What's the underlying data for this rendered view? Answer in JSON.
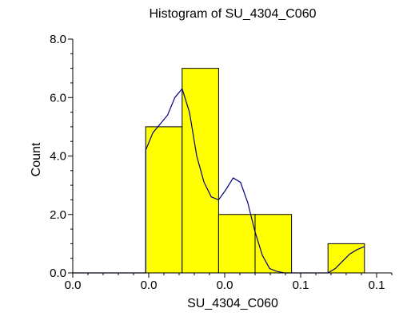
{
  "chart_data": {
    "type": "bar",
    "title": "Histogram of SU_4304_C060",
    "xlabel": "SU_4304_C060",
    "ylabel": "Count",
    "xlim": [
      0.0,
      0.1
    ],
    "ylim": [
      0,
      8
    ],
    "bins": [
      {
        "x0": 0.02,
        "x1": 0.03,
        "count": 5
      },
      {
        "x0": 0.03,
        "x1": 0.04,
        "count": 7
      },
      {
        "x0": 0.04,
        "x1": 0.05,
        "count": 2
      },
      {
        "x0": 0.05,
        "x1": 0.06,
        "count": 2
      },
      {
        "x0": 0.06,
        "x1": 0.07,
        "count": 0
      },
      {
        "x0": 0.07,
        "x1": 0.08,
        "count": 1
      }
    ],
    "x_tick_labels": [
      "0.0",
      "0.0",
      "0.0",
      "0.1",
      "0.1"
    ],
    "y_tick_labels": [
      "0.0",
      "2.0",
      "4.0",
      "6.0",
      "8.0"
    ],
    "density_curve": {
      "x": [
        0.02,
        0.022,
        0.024,
        0.026,
        0.028,
        0.03,
        0.032,
        0.034,
        0.036,
        0.038,
        0.04,
        0.042,
        0.044,
        0.046,
        0.048,
        0.05,
        0.052,
        0.054,
        0.056,
        0.058,
        0.06,
        0.062,
        0.064,
        0.066,
        0.068,
        0.07,
        0.072,
        0.074,
        0.076,
        0.078,
        0.08
      ],
      "y": [
        4.2,
        4.8,
        5.1,
        5.4,
        6.0,
        6.3,
        5.5,
        4.0,
        3.1,
        2.6,
        2.5,
        2.85,
        3.25,
        3.1,
        2.4,
        1.4,
        0.6,
        0.15,
        0.05,
        0.0,
        0.0,
        0.0,
        0.0,
        0.0,
        0.0,
        0.0,
        0.15,
        0.4,
        0.65,
        0.8,
        0.9
      ]
    },
    "colors": {
      "bar_fill": "#ffff00",
      "bar_stroke": "#000000",
      "curve": "#000080",
      "axis": "#000000"
    },
    "grid": false,
    "legend": "none"
  }
}
